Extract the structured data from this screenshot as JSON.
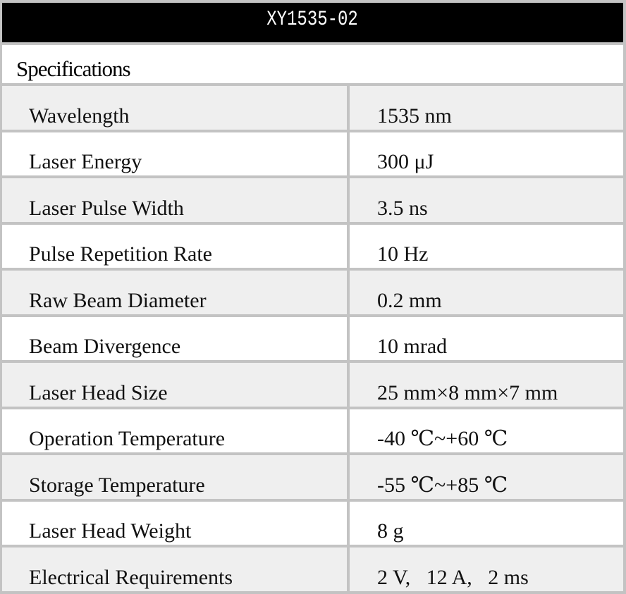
{
  "title": "XY1535-02",
  "section": "Specifications",
  "rows": [
    {
      "label": "Wavelength",
      "value": "1535 nm"
    },
    {
      "label": "Laser Energy",
      "value": "300 μJ"
    },
    {
      "label": "Laser Pulse Width",
      "value": "3.5 ns"
    },
    {
      "label": "Pulse Repetition Rate",
      "value": "10 Hz"
    },
    {
      "label": "Raw Beam Diameter",
      "value": "0.2 mm"
    },
    {
      "label": "Beam Divergence",
      "value": "10 mrad"
    },
    {
      "label": "Laser Head Size",
      "value": "25 mm×8 mm×7 mm"
    },
    {
      "label": "Operation Temperature",
      "value": "-40 ℃~+60 ℃"
    },
    {
      "label": "Storage Temperature",
      "value": "-55 ℃~+85 ℃"
    },
    {
      "label": "Laser Head Weight",
      "value": "8 g"
    },
    {
      "label": "Electrical Requirements",
      "value": "2 V,   12 A,   2 ms"
    }
  ]
}
